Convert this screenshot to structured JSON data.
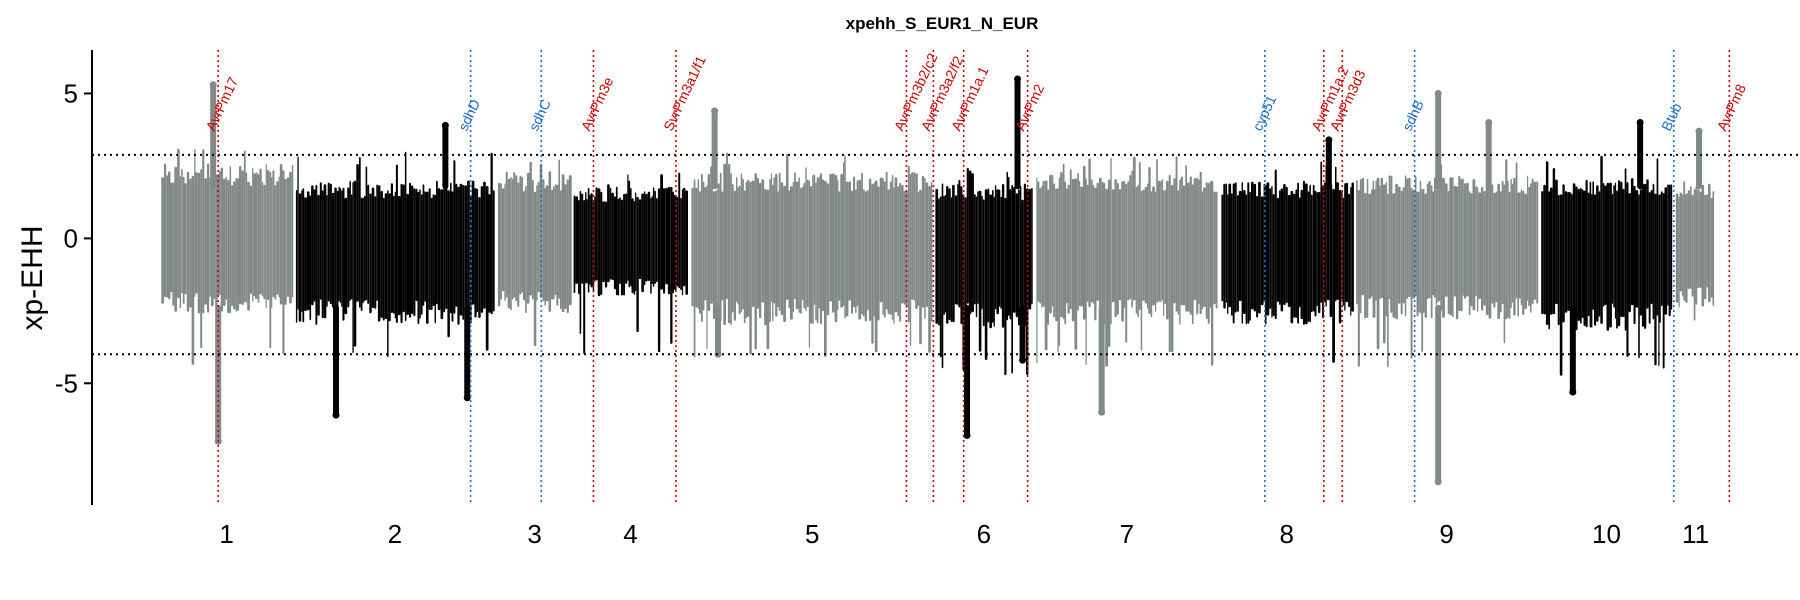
{
  "chart_data": {
    "type": "scatter",
    "title": "xpehh_S_EUR1_N_EUR",
    "ylabel": "xp-EHH",
    "xlabel": "",
    "ylim": [
      -9.2,
      6.5
    ],
    "yticks": [
      5,
      0,
      -5
    ],
    "ytick_labels": [
      "5",
      "0",
      "-5"
    ],
    "thresholds": [
      2.88,
      -4.0
    ],
    "colors": {
      "odd": "#828a89",
      "even": "#000000",
      "avr": "#cc0000",
      "other": "#1f6fcf"
    },
    "chromosomes": [
      {
        "label": "1",
        "start": 0.0,
        "end": 8.0,
        "label_pos": 4.0,
        "color": "odd",
        "base_min": -2.6,
        "base_max": 2.6,
        "ext_min": -4.5,
        "ext_max": 3.2
      },
      {
        "label": "2",
        "start": 8.0,
        "end": 20.0,
        "label_pos": 14.0,
        "color": "even",
        "base_min": -3.0,
        "base_max": 2.0,
        "ext_min": -4.2,
        "ext_max": 3.0
      },
      {
        "label": "3",
        "start": 20.0,
        "end": 24.5,
        "label_pos": 22.3,
        "color": "odd",
        "base_min": -2.6,
        "base_max": 2.3,
        "ext_min": -4.3,
        "ext_max": 2.8
      },
      {
        "label": "4",
        "start": 24.5,
        "end": 31.5,
        "label_pos": 28.0,
        "color": "even",
        "base_min": -2.0,
        "base_max": 1.8,
        "ext_min": -4.0,
        "ext_max": 2.3
      },
      {
        "label": "5",
        "start": 31.5,
        "end": 46.0,
        "label_pos": 38.8,
        "color": "odd",
        "base_min": -3.0,
        "base_max": 2.3,
        "ext_min": -4.3,
        "ext_max": 3.0
      },
      {
        "label": "6",
        "start": 46.0,
        "end": 52.0,
        "label_pos": 49.0,
        "color": "even",
        "base_min": -3.2,
        "base_max": 1.9,
        "ext_min": -4.8,
        "ext_max": 2.5
      },
      {
        "label": "7",
        "start": 52.0,
        "end": 63.0,
        "label_pos": 57.5,
        "color": "odd",
        "base_min": -3.0,
        "base_max": 2.3,
        "ext_min": -4.5,
        "ext_max": 2.9
      },
      {
        "label": "8",
        "start": 63.0,
        "end": 71.0,
        "label_pos": 67.0,
        "color": "even",
        "base_min": -3.0,
        "base_max": 2.0,
        "ext_min": -4.5,
        "ext_max": 2.7
      },
      {
        "label": "9",
        "start": 71.0,
        "end": 82.0,
        "label_pos": 76.5,
        "color": "odd",
        "base_min": -2.8,
        "base_max": 2.2,
        "ext_min": -4.5,
        "ext_max": 3.0
      },
      {
        "label": "10",
        "start": 82.0,
        "end": 90.0,
        "label_pos": 86.0,
        "color": "even",
        "base_min": -3.2,
        "base_max": 2.1,
        "ext_min": -5.0,
        "ext_max": 3.0
      },
      {
        "label": "11",
        "start": 90.0,
        "end": 92.5,
        "label_pos": 91.3,
        "color": "odd",
        "base_min": -2.4,
        "base_max": 2.0,
        "ext_min": -3.5,
        "ext_max": 2.6
      }
    ],
    "peaks": [
      {
        "x": 3.2,
        "y": 5.3,
        "color": "odd"
      },
      {
        "x": 3.5,
        "y": -7.0,
        "color": "odd"
      },
      {
        "x": 10.5,
        "y": -6.1,
        "color": "even"
      },
      {
        "x": 17.0,
        "y": 3.9,
        "color": "even"
      },
      {
        "x": 18.3,
        "y": -5.5,
        "color": "even"
      },
      {
        "x": 33.0,
        "y": 4.4,
        "color": "odd"
      },
      {
        "x": 33.2,
        "y": -4.0,
        "color": "odd"
      },
      {
        "x": 48.0,
        "y": -6.8,
        "color": "even"
      },
      {
        "x": 51.0,
        "y": 5.5,
        "color": "even"
      },
      {
        "x": 51.3,
        "y": -4.2,
        "color": "even"
      },
      {
        "x": 56.0,
        "y": -6.0,
        "color": "odd"
      },
      {
        "x": 69.5,
        "y": 3.4,
        "color": "even"
      },
      {
        "x": 76.0,
        "y": 5.0,
        "color": "odd"
      },
      {
        "x": 76.0,
        "y": -8.4,
        "color": "odd"
      },
      {
        "x": 79.0,
        "y": 4.0,
        "color": "odd"
      },
      {
        "x": 84.0,
        "y": -5.3,
        "color": "even"
      },
      {
        "x": 88.0,
        "y": 4.0,
        "color": "even"
      },
      {
        "x": 91.5,
        "y": 3.7,
        "color": "odd"
      }
    ],
    "genes": [
      {
        "label": "AvrPm17",
        "x": 3.5,
        "type": "avr"
      },
      {
        "label": "sdhD",
        "x": 18.5,
        "type": "other"
      },
      {
        "label": "sdhC",
        "x": 22.7,
        "type": "other"
      },
      {
        "label": "AvrPm3e",
        "x": 25.8,
        "type": "avr"
      },
      {
        "label": "SvrPm3a1/f1",
        "x": 30.7,
        "type": "avr"
      },
      {
        "label": "AvrPm3b2/c2",
        "x": 44.4,
        "type": "avr"
      },
      {
        "label": "AvrPm3a2/f2",
        "x": 46.0,
        "type": "avr"
      },
      {
        "label": "AvrPm1a.1",
        "x": 47.8,
        "type": "avr"
      },
      {
        "label": "AvrPm2",
        "x": 51.6,
        "type": "avr"
      },
      {
        "label": "cyp51",
        "x": 65.7,
        "type": "other"
      },
      {
        "label": "AvrPm1a.2",
        "x": 69.2,
        "type": "avr"
      },
      {
        "label": "AvrPm3d3",
        "x": 70.3,
        "type": "avr"
      },
      {
        "label": "sdhB",
        "x": 74.6,
        "type": "other"
      },
      {
        "label": "Btub",
        "x": 90.0,
        "type": "other"
      },
      {
        "label": "AvrPm8",
        "x": 93.3,
        "type": "avr"
      }
    ],
    "xlim": [
      -4.0,
      97.5
    ]
  }
}
